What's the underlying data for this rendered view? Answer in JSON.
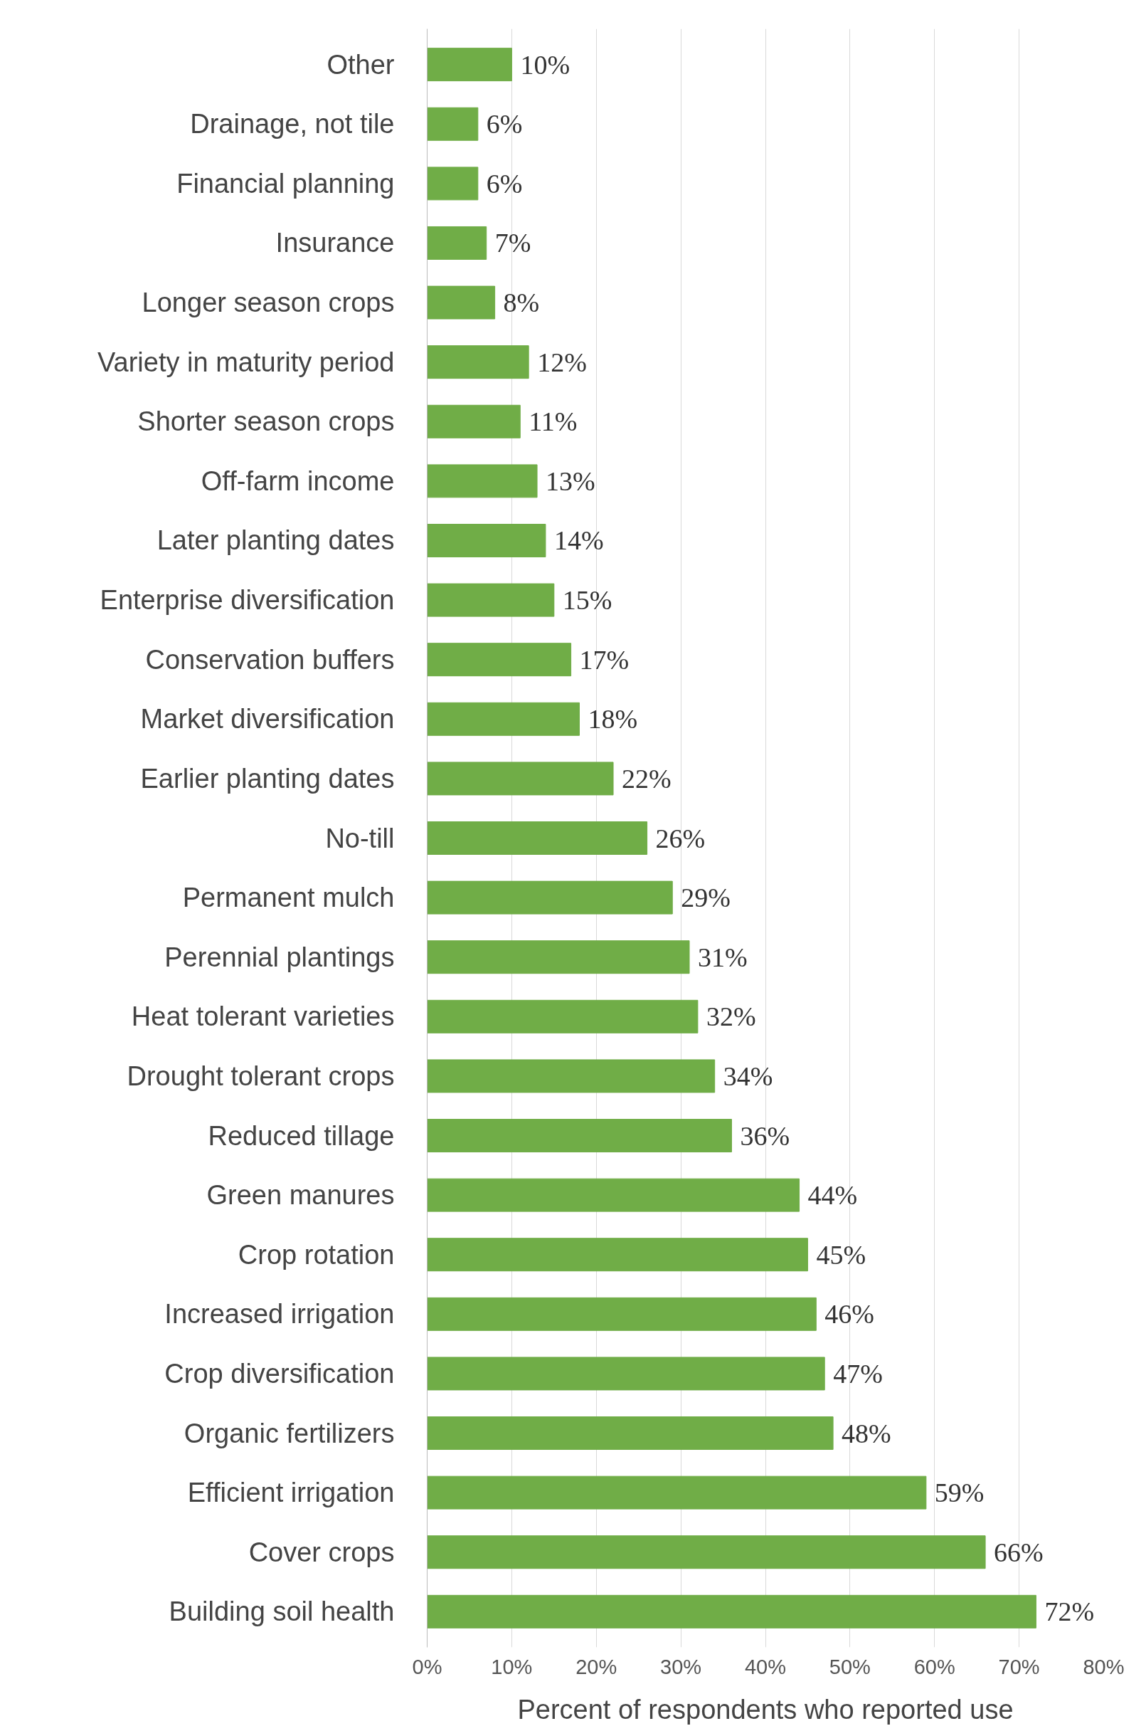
{
  "chart_data": {
    "type": "bar",
    "orientation": "horizontal",
    "xlabel": "Percent of respondents who reported use",
    "categories": [
      "Other",
      "Drainage, not tile",
      "Financial planning",
      "Insurance",
      "Longer season crops",
      "Variety in maturity period",
      "Shorter season crops",
      "Off-farm income",
      "Later planting dates",
      "Enterprise diversification",
      "Conservation buffers",
      "Market diversification",
      "Earlier planting dates",
      "No-till",
      "Permanent mulch",
      "Perennial plantings",
      "Heat tolerant varieties",
      "Drought tolerant crops",
      "Reduced tillage",
      "Green manures",
      "Crop rotation",
      "Increased irrigation",
      "Crop diversification",
      "Organic fertilizers",
      "Efficient irrigation",
      "Cover crops",
      "Building soil health"
    ],
    "values": [
      10,
      6,
      6,
      7,
      8,
      12,
      11,
      13,
      14,
      15,
      17,
      18,
      22,
      26,
      29,
      31,
      32,
      34,
      36,
      44,
      45,
      46,
      47,
      48,
      59,
      66,
      72
    ],
    "value_labels": [
      "10%",
      "6%",
      "6%",
      "7%",
      "8%",
      "12%",
      "11%",
      "13%",
      "14%",
      "15%",
      "17%",
      "18%",
      "22%",
      "26%",
      "29%",
      "31%",
      "32%",
      "34%",
      "36%",
      "44%",
      "45%",
      "46%",
      "47%",
      "48%",
      "59%",
      "66%",
      "72%"
    ],
    "color": "#70ad47",
    "xlim": [
      0,
      80
    ],
    "xticks": [
      {
        "value": 0,
        "label": "0%"
      },
      {
        "value": 10,
        "label": "10%"
      },
      {
        "value": 20,
        "label": "20%"
      },
      {
        "value": 30,
        "label": "30%"
      },
      {
        "value": 40,
        "label": "40%"
      },
      {
        "value": 50,
        "label": "50%"
      },
      {
        "value": 60,
        "label": "60%"
      },
      {
        "value": 70,
        "label": "70%"
      },
      {
        "value": 80,
        "label": "80%"
      }
    ],
    "grid": "x"
  }
}
